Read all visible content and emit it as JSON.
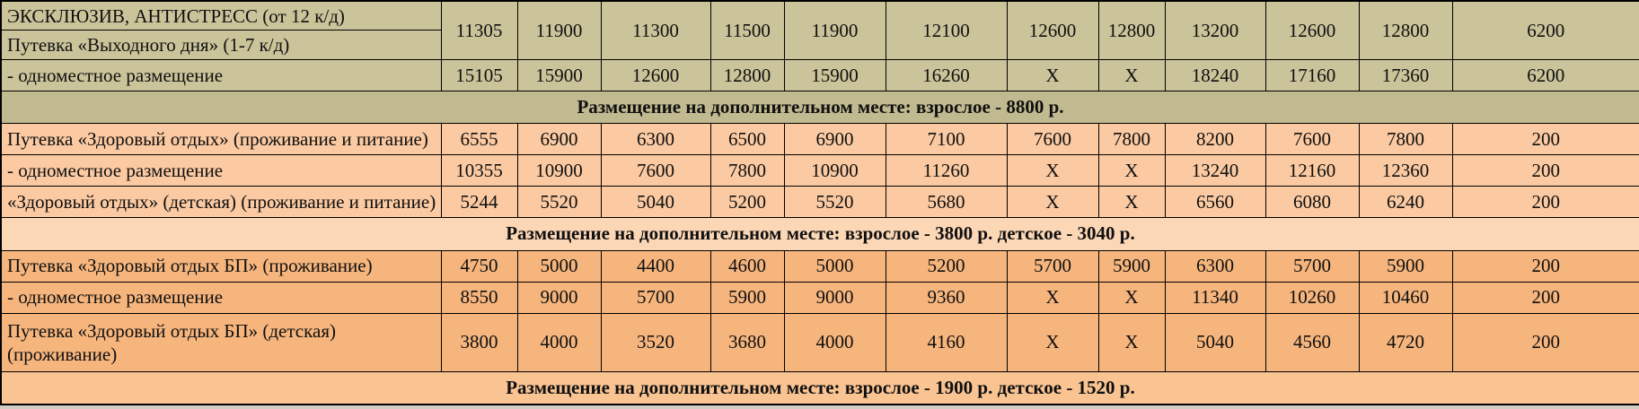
{
  "table": {
    "border_color": "#000000",
    "text_color": "#101010",
    "sections": [
      {
        "row_bg": "#cbc399",
        "banner_bg": "#c1b98f",
        "rows": [
          {
            "label1": "ЭКСКЛЮЗИВ, АНТИСТРЕСС (от 12 к/д)",
            "label2": "Путевка «Выходного дня» (1-7 к/д)",
            "values": [
              "11305",
              "11900",
              "11300",
              "11500",
              "11900",
              "12100",
              "12600",
              "12800",
              "13200",
              "12600",
              "12800",
              "6200"
            ]
          },
          {
            "label": "- одноместное размещение",
            "values": [
              "15105",
              "15900",
              "12600",
              "12800",
              "15900",
              "16260",
              "X",
              "X",
              "18240",
              "17160",
              "17360",
              "6200"
            ]
          }
        ],
        "banner": "Размещение на дополнительном месте: взрослое - 8800 р."
      },
      {
        "row_bg": "#fbcaa2",
        "banner_bg": "#fcd7b6",
        "rows": [
          {
            "label": "Путевка «Здоровый отдых» (проживание и питание)",
            "values": [
              "6555",
              "6900",
              "6300",
              "6500",
              "6900",
              "7100",
              "7600",
              "7800",
              "8200",
              "7600",
              "7800",
              "200"
            ]
          },
          {
            "label": "- одноместное размещение",
            "values": [
              "10355",
              "10900",
              "7600",
              "7800",
              "10900",
              "11260",
              "X",
              "X",
              "13240",
              "12160",
              "12360",
              "200"
            ]
          },
          {
            "label": "«Здоровый отдых» (детская) (проживание и питание)",
            "values": [
              "5244",
              "5520",
              "5040",
              "5200",
              "5520",
              "5680",
              "X",
              "X",
              "6560",
              "6080",
              "6240",
              "200"
            ]
          }
        ],
        "banner": "Размещение на дополнительном месте: взрослое - 3800 р. детское - 3040 р."
      },
      {
        "row_bg": "#f6b57d",
        "banner_bg": "#f9c392",
        "rows": [
          {
            "label": "Путевка «Здоровый отдых БП» (проживание)",
            "values": [
              "4750",
              "5000",
              "4400",
              "4600",
              "5000",
              "5200",
              "5700",
              "5900",
              "6300",
              "5700",
              "5900",
              "200"
            ]
          },
          {
            "label": "- одноместное размещение",
            "values": [
              "8550",
              "9000",
              "5700",
              "5900",
              "9000",
              "9360",
              "X",
              "X",
              "11340",
              "10260",
              "10460",
              "200"
            ]
          },
          {
            "label_lines": [
              "Путевка «Здоровый отдых БП» (детская)",
              "(проживание)"
            ],
            "values": [
              "3800",
              "4000",
              "3520",
              "3680",
              "4000",
              "4160",
              "X",
              "X",
              "5040",
              "4560",
              "4720",
              "200"
            ]
          }
        ],
        "banner": "Размещение на дополнительном месте: взрослое - 1900 р. детское - 1520 р."
      }
    ]
  }
}
